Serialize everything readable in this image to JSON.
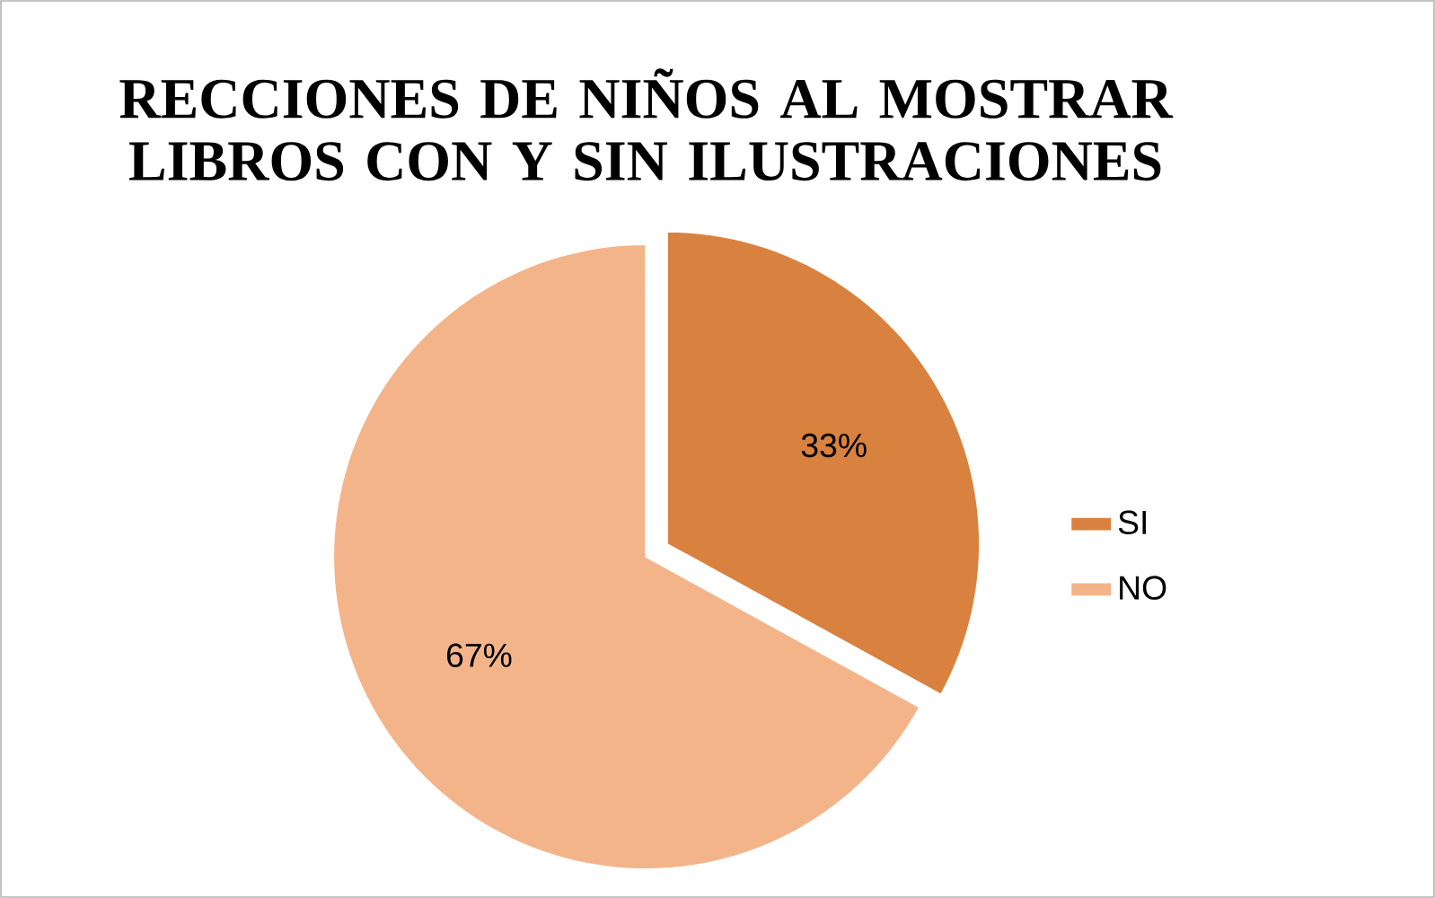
{
  "chart_data": {
    "type": "pie",
    "title": "RECCIONES DE NIÑOS AL MOSTRAR LIBROS CON Y SIN ILUSTRACIONES",
    "categories": [
      "SI",
      "NO"
    ],
    "values": [
      33,
      67
    ],
    "colors": [
      "#d9823f",
      "#f4b48a"
    ],
    "value_labels": [
      "33%",
      "67%"
    ],
    "legend": "right"
  }
}
